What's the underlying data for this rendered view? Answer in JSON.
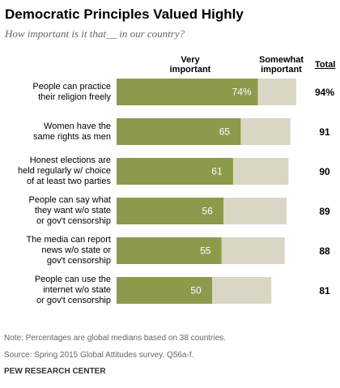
{
  "header": {
    "title": "Democratic Principles Valued Highly",
    "subtitle": "How important is it that__ in our country?"
  },
  "columns": {
    "very": "Very important",
    "somewhat": "Somewhat important",
    "total": "Total"
  },
  "colors": {
    "very": "#8c9a4b",
    "somewhat": "#d9d6c5"
  },
  "chart_data": {
    "type": "bar",
    "stacked": true,
    "orientation": "horizontal",
    "categories": [
      [
        "People can practice",
        "their religion freely"
      ],
      [
        "Women have the",
        "same rights as men"
      ],
      [
        "Honest elections are",
        "held regularly w/ choice",
        "of at least two parties"
      ],
      [
        "People can say what",
        "they want w/o state",
        "or gov't censorship"
      ],
      [
        "The media can report",
        "news w/o state or",
        "gov't censorship"
      ],
      [
        "People can use the",
        "internet w/o state",
        "or gov't censorship"
      ]
    ],
    "series": [
      {
        "name": "Very important",
        "values": [
          74,
          65,
          61,
          56,
          55,
          50
        ],
        "labels": [
          "74%",
          "65",
          "61",
          "56",
          "55",
          "50"
        ]
      },
      {
        "name": "Somewhat important",
        "values": [
          20,
          26,
          29,
          33,
          33,
          31
        ]
      }
    ],
    "totals": [
      "94%",
      "91",
      "90",
      "89",
      "88",
      "81"
    ],
    "xlim": [
      0,
      100
    ]
  },
  "footer": {
    "note": "Note: Percentages are global medians based on 38 countries.",
    "source": "Source: Spring 2015 Global Attitudes survey. Q56a-f.",
    "brand": "PEW RESEARCH CENTER"
  }
}
